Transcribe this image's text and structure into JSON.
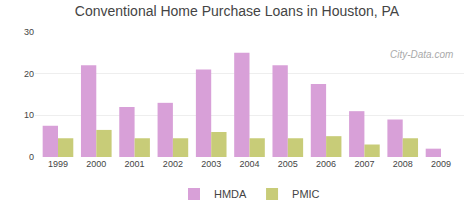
{
  "chart_data": {
    "type": "bar",
    "title": "Conventional Home Purchase Loans in Houston, PA",
    "categories": [
      "1999",
      "2000",
      "2001",
      "2002",
      "2003",
      "2004",
      "2005",
      "2006",
      "2007",
      "2008",
      "2009"
    ],
    "series": [
      {
        "name": "HMDA",
        "color": "#d8a0d8",
        "values": [
          7.5,
          22,
          12,
          13,
          21,
          25,
          22,
          17.5,
          11,
          9,
          2
        ]
      },
      {
        "name": "PMIC",
        "color": "#c8cc78",
        "values": [
          4.5,
          6.5,
          4.5,
          4.5,
          6,
          4.5,
          4.5,
          5,
          3,
          4.5,
          0
        ]
      }
    ],
    "ylim": [
      0,
      30
    ],
    "yticks": [
      0,
      10,
      20,
      30
    ],
    "grid": true,
    "legend": "bottom",
    "annotations": [
      "City-Data.com"
    ]
  }
}
